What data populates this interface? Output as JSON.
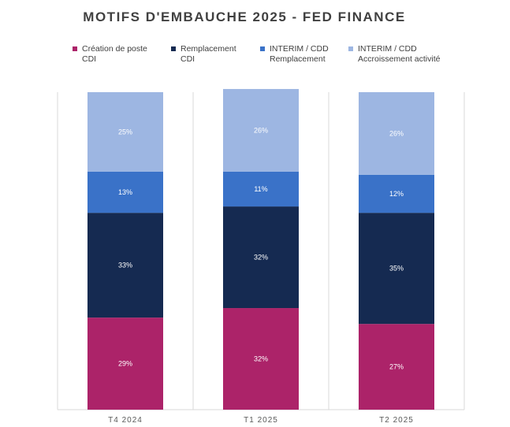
{
  "chart_data": {
    "type": "bar",
    "stacked": true,
    "percent": true,
    "title": "MOTIFS D'EMBAUCHE 2025 - FED FINANCE",
    "categories": [
      "T4 2024",
      "T1 2025",
      "T2 2025"
    ],
    "series": [
      {
        "name": "Création de poste CDI",
        "legend_label": "Création de poste\nCDI",
        "color": "#AC2369",
        "values": [
          29,
          32,
          27
        ]
      },
      {
        "name": "Remplacement CDI",
        "legend_label": "Remplacement\nCDI",
        "color": "#152A51",
        "values": [
          33,
          32,
          35
        ]
      },
      {
        "name": "INTERIM / CDD Remplacement",
        "legend_label": "INTERIM / CDD\nRemplacement",
        "color": "#3A72C8",
        "values": [
          13,
          11,
          12
        ]
      },
      {
        "name": "INTERIM / CDD Accroissement activité",
        "legend_label": "INTERIM / CDD\nAccroissement activité",
        "color": "#9DB6E2",
        "values": [
          25,
          26,
          26
        ]
      }
    ],
    "data_labels": [
      [
        "29%",
        "32%",
        "27%"
      ],
      [
        "33%",
        "32%",
        "35%"
      ],
      [
        "13%",
        "11%",
        "12%"
      ],
      [
        "25%",
        "26%",
        "26%"
      ]
    ],
    "legend_position": "top",
    "grid": true,
    "ylim": [
      0,
      100
    ]
  }
}
